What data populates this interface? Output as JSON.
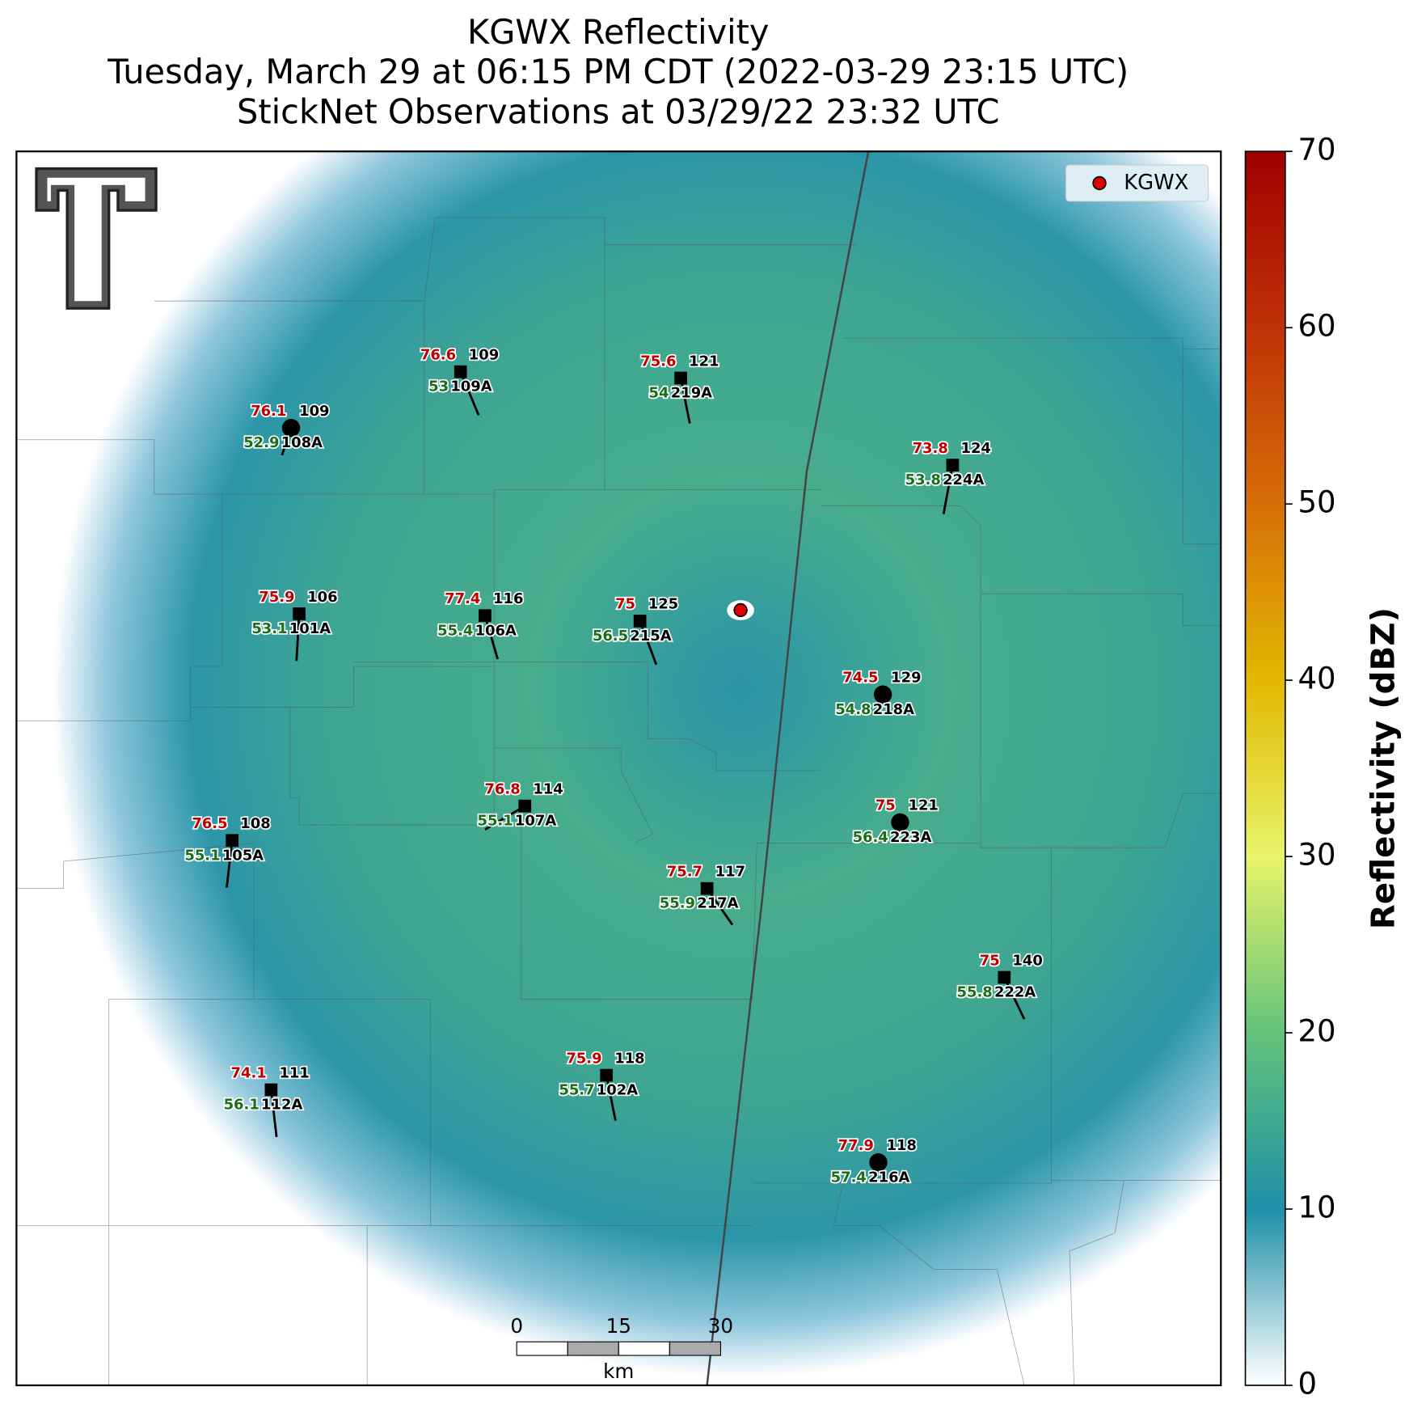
{
  "chart_data": {
    "type": "radar-map",
    "title": [
      "KGWX Reflectivity",
      "Tuesday, March 29 at 06:15 PM CDT (2022-03-29 23:15 UTC)",
      "StickNet Observations at 03/29/22 23:32 UTC"
    ],
    "legend": {
      "label": "KGWX",
      "color": "#e00000",
      "corner": "upper right"
    },
    "colorbar": {
      "label": "Reflectivity (dBZ)",
      "ylim": [
        0,
        70
      ],
      "yticks": [
        0,
        10,
        20,
        30,
        40,
        50,
        60,
        70
      ],
      "colormap": [
        "#ffffff",
        "#1e8fa8",
        "#62c27a",
        "#e8f46a",
        "#e2b800",
        "#d66e08",
        "#c03208",
        "#a00000"
      ]
    },
    "scale_bar": {
      "ticks": [
        0,
        15,
        30
      ],
      "unit": "km"
    },
    "stations": [
      {
        "id": "108A",
        "temperature": 76.1,
        "value": 109,
        "dewpoint": 52.9,
        "marker": "circle"
      },
      {
        "id": "109A",
        "temperature": 76.6,
        "value": 109,
        "dewpoint": 53.0,
        "marker": "square"
      },
      {
        "id": "219A",
        "temperature": 75.6,
        "value": 121,
        "dewpoint": 54.0,
        "marker": "square"
      },
      {
        "id": "224A",
        "temperature": 73.8,
        "value": 124,
        "dewpoint": 53.8,
        "marker": "square"
      },
      {
        "id": "101A",
        "temperature": 75.9,
        "value": 106,
        "dewpoint": 53.1,
        "marker": "square"
      },
      {
        "id": "106A",
        "temperature": 77.4,
        "value": 116,
        "dewpoint": 55.4,
        "marker": "square"
      },
      {
        "id": "215A",
        "temperature": 75.0,
        "value": 125,
        "dewpoint": 56.5,
        "marker": "square"
      },
      {
        "id": "218A",
        "temperature": 74.5,
        "value": 129,
        "dewpoint": 54.8,
        "marker": "circle"
      },
      {
        "id": "107A",
        "temperature": 76.8,
        "value": 114,
        "dewpoint": 55.1,
        "marker": "square"
      },
      {
        "id": "105A",
        "temperature": 76.5,
        "value": 108,
        "dewpoint": 55.1,
        "marker": "square"
      },
      {
        "id": "223A",
        "temperature": 75.0,
        "value": 121,
        "dewpoint": 56.4,
        "marker": "circle"
      },
      {
        "id": "217A",
        "temperature": 75.7,
        "value": 117,
        "dewpoint": 55.9,
        "marker": "square"
      },
      {
        "id": "222A",
        "temperature": 75.0,
        "value": 140,
        "dewpoint": 55.8,
        "marker": "square"
      },
      {
        "id": "112A",
        "temperature": 74.1,
        "value": 111,
        "dewpoint": 56.1,
        "marker": "square"
      },
      {
        "id": "102A",
        "temperature": 75.9,
        "value": 118,
        "dewpoint": 55.7,
        "marker": "square"
      },
      {
        "id": "216A",
        "temperature": 77.9,
        "value": 118,
        "dewpoint": 57.4,
        "marker": "circle"
      }
    ]
  }
}
